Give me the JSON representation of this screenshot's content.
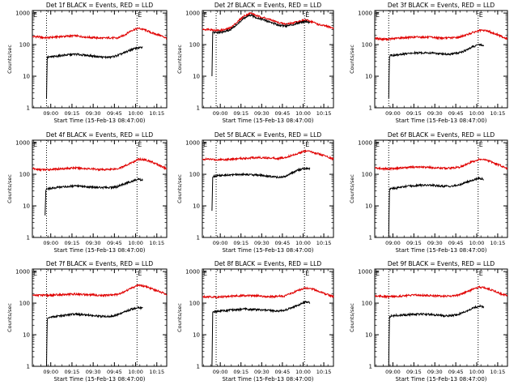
{
  "figure": {
    "xlabel": "Start Time (15-Feb-13 08:47:00)",
    "ylabel": "Counts/sec",
    "x_tick_labels": [
      "09:00",
      "09:15",
      "09:30",
      "09:45",
      "10:00",
      "10:15"
    ],
    "y_tick_labels": [
      "1",
      "10",
      "100",
      "1000"
    ],
    "marker_label": "E",
    "colors": {
      "events": "#000000",
      "lld": "#e00000",
      "background": "#ffffff"
    }
  },
  "chart_data": [
    {
      "type": "line",
      "title": "Det 1f BLACK = Events, RED = LLD",
      "xlabel": "Start Time (15-Feb-13 08:47:00)",
      "ylabel": "Counts/sec",
      "x_units": "minutes after 08:47:00",
      "xlim": [
        0,
        95
      ],
      "ylim": [
        1,
        1200
      ],
      "y_scale": "log",
      "x_ticks": [
        13,
        28,
        43,
        58,
        73,
        88
      ],
      "x_tick_labels": [
        "09:00",
        "09:15",
        "09:30",
        "09:45",
        "10:00",
        "10:15"
      ],
      "markers_x": [
        10,
        74
      ],
      "series": [
        {
          "name": "LLD",
          "color": "#e00000",
          "x": [
            0,
            3,
            6,
            10,
            20,
            30,
            40,
            50,
            55,
            60,
            65,
            70,
            75,
            80,
            85,
            90,
            95
          ],
          "values": [
            180,
            180,
            170,
            165,
            180,
            190,
            170,
            160,
            165,
            160,
            200,
            280,
            330,
            290,
            230,
            200,
            160
          ]
        },
        {
          "name": "Events",
          "color": "#000000",
          "x": [
            10,
            10.5,
            11,
            12,
            20,
            30,
            40,
            50,
            55,
            60,
            65,
            70,
            75,
            78
          ],
          "values": [
            2,
            40,
            40,
            40,
            45,
            50,
            45,
            40,
            40,
            45,
            55,
            70,
            80,
            80
          ]
        }
      ]
    },
    {
      "type": "line",
      "title": "Det 2f BLACK = Events, RED = LLD",
      "xlabel": "Start Time (15-Feb-13 08:47:00)",
      "ylabel": "Counts/sec",
      "x_units": "minutes after 08:47:00",
      "xlim": [
        0,
        95
      ],
      "ylim": [
        1,
        1200
      ],
      "y_scale": "log",
      "x_ticks": [
        13,
        28,
        43,
        58,
        73,
        88
      ],
      "x_tick_labels": [
        "09:00",
        "09:15",
        "09:30",
        "09:45",
        "10:00",
        "10:15"
      ],
      "markers_x": [
        10,
        74
      ],
      "series": [
        {
          "name": "LLD",
          "color": "#e00000",
          "x": [
            0,
            5,
            10,
            15,
            20,
            25,
            30,
            35,
            40,
            45,
            50,
            55,
            60,
            65,
            70,
            75,
            80,
            85,
            90,
            95
          ],
          "values": [
            300,
            310,
            280,
            290,
            330,
            500,
            800,
            1000,
            800,
            700,
            600,
            500,
            450,
            480,
            550,
            600,
            520,
            420,
            380,
            330
          ]
        },
        {
          "name": "Events",
          "color": "#000000",
          "x": [
            7,
            7.5,
            8,
            10,
            15,
            20,
            25,
            30,
            35,
            40,
            45,
            50,
            55,
            60,
            65,
            70,
            75,
            78
          ],
          "values": [
            10,
            250,
            240,
            240,
            250,
            290,
            430,
            680,
            850,
            700,
            600,
            500,
            420,
            390,
            420,
            500,
            550,
            500
          ]
        }
      ]
    },
    {
      "type": "line",
      "title": "Det 3f BLACK = Events, RED = LLD",
      "xlabel": "Start Time (15-Feb-13 08:47:00)",
      "ylabel": "Counts/sec",
      "x_units": "minutes after 08:47:00",
      "xlim": [
        0,
        95
      ],
      "ylim": [
        1,
        1200
      ],
      "y_scale": "log",
      "x_ticks": [
        13,
        28,
        43,
        58,
        73,
        88
      ],
      "x_tick_labels": [
        "09:00",
        "09:15",
        "09:30",
        "09:45",
        "10:00",
        "10:15"
      ],
      "markers_x": [
        10,
        74
      ],
      "series": [
        {
          "name": "LLD",
          "color": "#e00000",
          "x": [
            0,
            5,
            10,
            20,
            30,
            40,
            50,
            55,
            60,
            65,
            70,
            75,
            80,
            85,
            90,
            95
          ],
          "values": [
            160,
            150,
            150,
            165,
            175,
            170,
            160,
            165,
            170,
            200,
            240,
            280,
            280,
            230,
            190,
            150
          ]
        },
        {
          "name": "Events",
          "color": "#000000",
          "x": [
            10,
            10.5,
            11,
            12,
            20,
            30,
            40,
            50,
            55,
            60,
            65,
            70,
            75,
            78
          ],
          "values": [
            2,
            40,
            45,
            45,
            50,
            55,
            55,
            50,
            50,
            55,
            65,
            85,
            100,
            95
          ]
        }
      ]
    },
    {
      "type": "line",
      "title": "Det 4f BLACK = Events, RED = LLD",
      "xlabel": "Start Time (15-Feb-13 08:47:00)",
      "ylabel": "Counts/sec",
      "x_units": "minutes after 08:47:00",
      "xlim": [
        0,
        95
      ],
      "ylim": [
        1,
        1200
      ],
      "y_scale": "log",
      "x_ticks": [
        13,
        28,
        43,
        58,
        73,
        88
      ],
      "x_tick_labels": [
        "09:00",
        "09:15",
        "09:30",
        "09:45",
        "10:00",
        "10:15"
      ],
      "markers_x": [
        10,
        74
      ],
      "series": [
        {
          "name": "LLD",
          "color": "#e00000",
          "x": [
            0,
            5,
            10,
            20,
            30,
            40,
            50,
            55,
            60,
            65,
            70,
            75,
            80,
            85,
            90,
            95
          ],
          "values": [
            150,
            140,
            140,
            150,
            160,
            150,
            140,
            145,
            150,
            180,
            230,
            300,
            290,
            240,
            190,
            150
          ]
        },
        {
          "name": "Events",
          "color": "#000000",
          "x": [
            9,
            9.5,
            10,
            12,
            20,
            30,
            40,
            50,
            55,
            60,
            65,
            70,
            75,
            78
          ],
          "values": [
            5,
            30,
            35,
            35,
            40,
            42,
            40,
            38,
            38,
            40,
            50,
            60,
            70,
            65
          ]
        }
      ]
    },
    {
      "type": "line",
      "title": "Det 5f BLACK = Events, RED = LLD",
      "xlabel": "Start Time (15-Feb-13 08:47:00)",
      "ylabel": "Counts/sec",
      "x_units": "minutes after 08:47:00",
      "xlim": [
        0,
        95
      ],
      "ylim": [
        1,
        1200
      ],
      "y_scale": "log",
      "x_ticks": [
        13,
        28,
        43,
        58,
        73,
        88
      ],
      "x_tick_labels": [
        "09:00",
        "09:15",
        "09:30",
        "09:45",
        "10:00",
        "10:15"
      ],
      "markers_x": [
        10,
        74
      ],
      "series": [
        {
          "name": "LLD",
          "color": "#e00000",
          "x": [
            0,
            5,
            10,
            20,
            30,
            40,
            50,
            55,
            60,
            65,
            70,
            75,
            80,
            85,
            90,
            95
          ],
          "values": [
            300,
            300,
            290,
            300,
            320,
            340,
            330,
            320,
            340,
            400,
            470,
            550,
            500,
            430,
            370,
            300
          ]
        },
        {
          "name": "Events",
          "color": "#000000",
          "x": [
            7,
            7.5,
            8,
            10,
            20,
            30,
            40,
            50,
            55,
            60,
            65,
            70,
            75,
            78
          ],
          "values": [
            7,
            80,
            85,
            90,
            95,
            100,
            95,
            85,
            80,
            85,
            110,
            140,
            155,
            150
          ]
        }
      ]
    },
    {
      "type": "line",
      "title": "Det 6f BLACK = Events, RED = LLD",
      "xlabel": "Start Time (15-Feb-13 08:47:00)",
      "ylabel": "Counts/sec",
      "x_units": "minutes after 08:47:00",
      "xlim": [
        0,
        95
      ],
      "ylim": [
        1,
        1200
      ],
      "y_scale": "log",
      "x_ticks": [
        13,
        28,
        43,
        58,
        73,
        88
      ],
      "x_tick_labels": [
        "09:00",
        "09:15",
        "09:30",
        "09:45",
        "10:00",
        "10:15"
      ],
      "markers_x": [
        10,
        74
      ],
      "series": [
        {
          "name": "LLD",
          "color": "#e00000",
          "x": [
            0,
            5,
            10,
            20,
            30,
            40,
            50,
            55,
            60,
            65,
            70,
            75,
            80,
            85,
            90,
            95
          ],
          "values": [
            160,
            150,
            150,
            160,
            170,
            165,
            155,
            160,
            165,
            200,
            250,
            300,
            280,
            230,
            190,
            150
          ]
        },
        {
          "name": "Events",
          "color": "#000000",
          "x": [
            10,
            10.5,
            11,
            12,
            20,
            30,
            40,
            50,
            55,
            60,
            65,
            70,
            75,
            78
          ],
          "values": [
            1,
            30,
            35,
            35,
            40,
            45,
            45,
            42,
            42,
            45,
            55,
            65,
            75,
            70
          ]
        }
      ]
    },
    {
      "type": "line",
      "title": "Det 7f BLACK = Events, RED = LLD",
      "xlabel": "Start Time (15-Feb-13 08:47:00)",
      "ylabel": "Counts/sec",
      "x_units": "minutes after 08:47:00",
      "xlim": [
        0,
        95
      ],
      "ylim": [
        1,
        1200
      ],
      "y_scale": "log",
      "x_ticks": [
        13,
        28,
        43,
        58,
        73,
        88
      ],
      "x_tick_labels": [
        "09:00",
        "09:15",
        "09:30",
        "09:45",
        "10:00",
        "10:15"
      ],
      "markers_x": [
        10,
        74
      ],
      "series": [
        {
          "name": "LLD",
          "color": "#e00000",
          "x": [
            0,
            5,
            10,
            20,
            30,
            40,
            50,
            55,
            60,
            65,
            70,
            75,
            80,
            85,
            90,
            95
          ],
          "values": [
            180,
            180,
            175,
            185,
            195,
            185,
            175,
            180,
            190,
            230,
            300,
            370,
            340,
            280,
            230,
            190
          ]
        },
        {
          "name": "Events",
          "color": "#000000",
          "x": [
            10,
            10.5,
            11,
            12,
            20,
            30,
            40,
            50,
            55,
            60,
            65,
            70,
            75,
            78
          ],
          "values": [
            1,
            30,
            33,
            35,
            40,
            45,
            42,
            38,
            38,
            42,
            52,
            65,
            72,
            70
          ]
        }
      ]
    },
    {
      "type": "line",
      "title": "Det 8f BLACK = Events, RED = LLD",
      "xlabel": "Start Time (15-Feb-13 08:47:00)",
      "ylabel": "Counts/sec",
      "x_units": "minutes after 08:47:00",
      "xlim": [
        0,
        95
      ],
      "ylim": [
        1,
        1200
      ],
      "y_scale": "log",
      "x_ticks": [
        13,
        28,
        43,
        58,
        73,
        88
      ],
      "x_tick_labels": [
        "09:00",
        "09:15",
        "09:30",
        "09:45",
        "10:00",
        "10:15"
      ],
      "markers_x": [
        10,
        74
      ],
      "series": [
        {
          "name": "LLD",
          "color": "#e00000",
          "x": [
            0,
            5,
            10,
            20,
            30,
            40,
            50,
            55,
            60,
            65,
            70,
            75,
            80,
            85,
            90,
            95
          ],
          "values": [
            160,
            160,
            155,
            165,
            175,
            170,
            160,
            165,
            170,
            210,
            260,
            300,
            280,
            230,
            190,
            160
          ]
        },
        {
          "name": "Events",
          "color": "#000000",
          "x": [
            7,
            7.5,
            8,
            10,
            20,
            30,
            40,
            50,
            55,
            60,
            65,
            70,
            75,
            78
          ],
          "values": [
            1,
            50,
            55,
            55,
            60,
            65,
            62,
            58,
            56,
            60,
            72,
            90,
            110,
            105
          ]
        }
      ]
    },
    {
      "type": "line",
      "title": "Det 9f BLACK = Events, RED = LLD",
      "xlabel": "Start Time (15-Feb-13 08:47:00)",
      "ylabel": "Counts/sec",
      "x_units": "minutes after 08:47:00",
      "xlim": [
        0,
        95
      ],
      "ylim": [
        1,
        1200
      ],
      "y_scale": "log",
      "x_ticks": [
        13,
        28,
        43,
        58,
        73,
        88
      ],
      "x_tick_labels": [
        "09:00",
        "09:15",
        "09:30",
        "09:45",
        "10:00",
        "10:15"
      ],
      "markers_x": [
        10,
        74
      ],
      "series": [
        {
          "name": "LLD",
          "color": "#e00000",
          "x": [
            0,
            5,
            10,
            20,
            30,
            40,
            50,
            55,
            60,
            65,
            70,
            75,
            80,
            85,
            90,
            95
          ],
          "values": [
            170,
            165,
            160,
            170,
            180,
            175,
            165,
            170,
            180,
            220,
            270,
            320,
            300,
            250,
            200,
            170
          ]
        },
        {
          "name": "Events",
          "color": "#000000",
          "x": [
            10,
            10.5,
            11,
            12,
            20,
            30,
            40,
            50,
            55,
            60,
            65,
            70,
            75,
            78
          ],
          "values": [
            1,
            35,
            38,
            40,
            42,
            45,
            44,
            40,
            40,
            45,
            55,
            70,
            80,
            75
          ]
        }
      ]
    }
  ]
}
